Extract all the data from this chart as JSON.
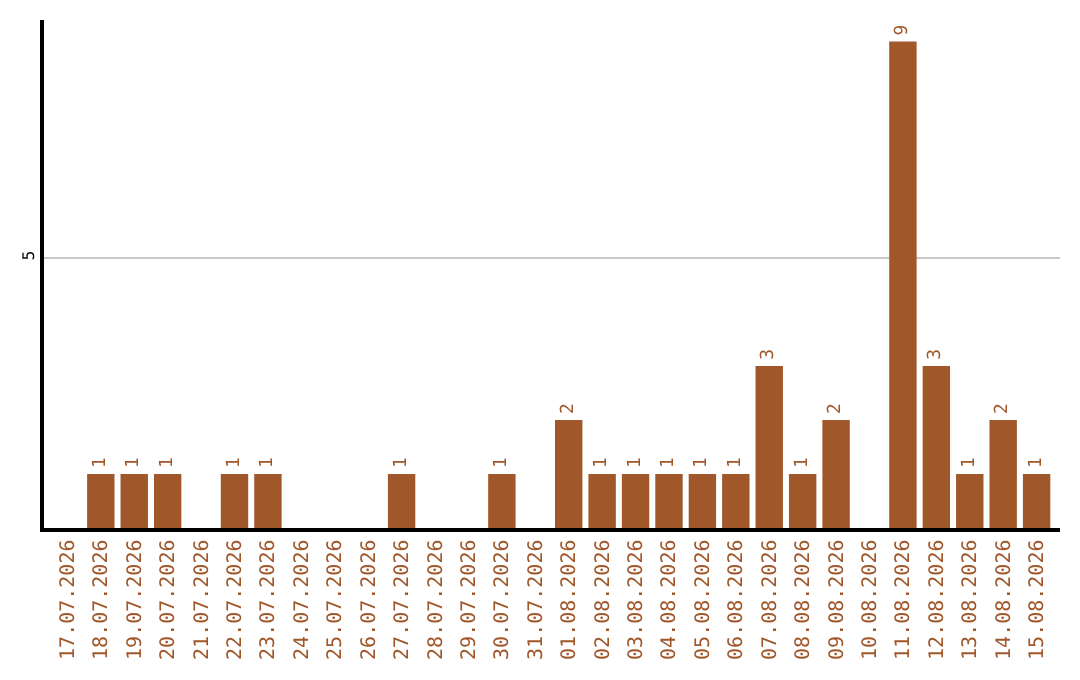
{
  "chart_data": {
    "type": "bar",
    "categories": [
      "17.07.2026",
      "18.07.2026",
      "19.07.2026",
      "20.07.2026",
      "21.07.2026",
      "22.07.2026",
      "23.07.2026",
      "24.07.2026",
      "25.07.2026",
      "26.07.2026",
      "27.07.2026",
      "28.07.2026",
      "29.07.2026",
      "30.07.2026",
      "31.07.2026",
      "01.08.2026",
      "02.08.2026",
      "03.08.2026",
      "04.08.2026",
      "05.08.2026",
      "06.08.2026",
      "07.08.2026",
      "08.08.2026",
      "09.08.2026",
      "10.08.2026",
      "11.08.2026",
      "12.08.2026",
      "13.08.2026",
      "14.08.2026",
      "15.08.2026"
    ],
    "values": [
      0,
      1,
      1,
      1,
      0,
      1,
      1,
      0,
      0,
      0,
      1,
      0,
      0,
      1,
      0,
      2,
      1,
      1,
      1,
      1,
      1,
      3,
      1,
      2,
      0,
      9,
      3,
      1,
      2,
      1
    ],
    "value_labels": [
      null,
      "1",
      "1",
      "1",
      null,
      "1",
      "1",
      null,
      null,
      null,
      "1",
      null,
      null,
      "1",
      null,
      "2",
      "1",
      "1",
      "1",
      "1",
      "1",
      "3",
      "1",
      "2",
      null,
      "9",
      "3",
      "1",
      "2",
      "1"
    ],
    "color": "#a0572a",
    "ylim": [
      0,
      9.4
    ],
    "yticks": [
      5
    ],
    "grid": "y",
    "legend": false
  }
}
